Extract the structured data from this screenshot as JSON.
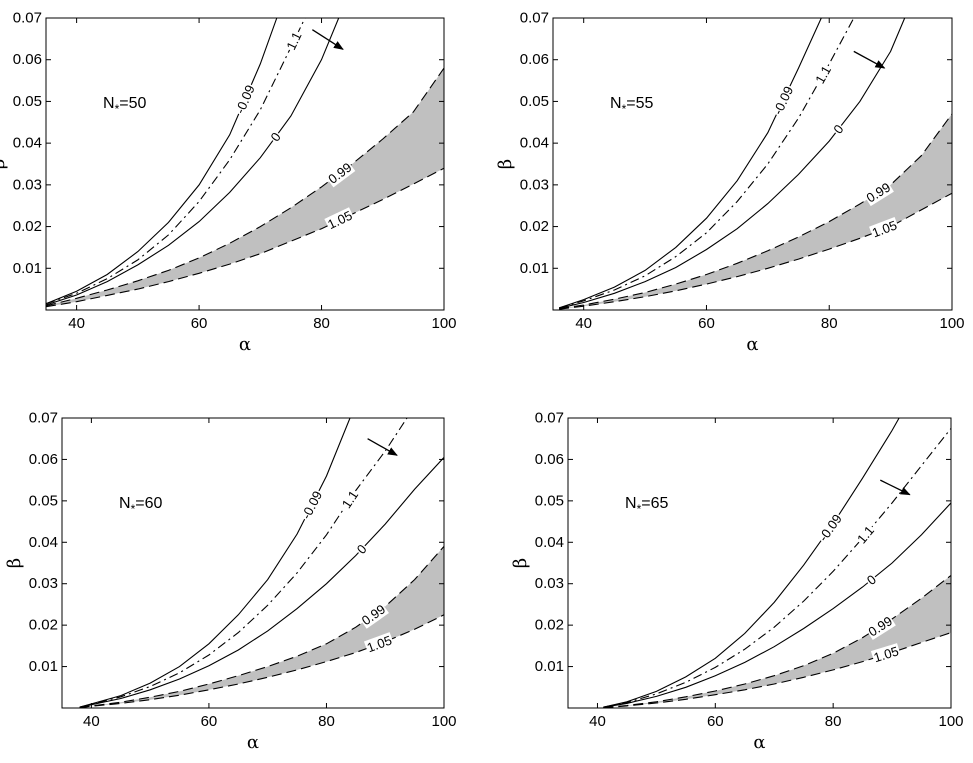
{
  "chart_data": [
    {
      "type": "line",
      "panel_label": "N",
      "panel_sub": "*",
      "panel_value": "=50",
      "xlabel": "α",
      "ylabel": "β",
      "xlim": [
        35,
        100
      ],
      "ylim": [
        0,
        0.07
      ],
      "xticks": [
        40,
        60,
        80,
        100
      ],
      "yticks": [
        0.01,
        0.02,
        0.03,
        0.04,
        0.05,
        0.06,
        0.07
      ],
      "arrow": {
        "from": [
          78.5,
          0.0672
        ],
        "to": [
          83.5,
          0.0625
        ]
      },
      "curves": [
        {
          "name": "-0.09",
          "style": "solid",
          "label": "-0.09",
          "label_x": 67.5,
          "x": [
            35,
            40,
            45,
            50,
            55,
            60,
            65,
            70,
            72.7
          ],
          "y": [
            0.0015,
            0.0045,
            0.0085,
            0.014,
            0.021,
            0.03,
            0.042,
            0.059,
            0.07
          ]
        },
        {
          "name": "1.1",
          "style": "dashdot",
          "label": "1.1",
          "label_x": 75.5,
          "x": [
            35,
            40,
            45,
            50,
            55,
            60,
            65,
            70,
            75,
            77.3
          ],
          "y": [
            0.0015,
            0.004,
            0.0075,
            0.012,
            0.018,
            0.026,
            0.036,
            0.048,
            0.063,
            0.07
          ]
        },
        {
          "name": "0",
          "style": "solid",
          "label": "0",
          "label_x": 72.5,
          "x": [
            35,
            40,
            45,
            50,
            55,
            60,
            65,
            70,
            75,
            80,
            82.8
          ],
          "y": [
            0.0012,
            0.0036,
            0.0068,
            0.0108,
            0.0155,
            0.0212,
            0.0282,
            0.0365,
            0.0465,
            0.06,
            0.07
          ]
        },
        {
          "name": "0.99",
          "style": "dashed",
          "label": "0.99",
          "label_x": 83,
          "x": [
            35,
            40,
            45,
            50,
            55,
            60,
            65,
            70,
            75,
            80,
            85,
            90,
            95,
            100
          ],
          "y": [
            0.001,
            0.0028,
            0.0048,
            0.007,
            0.0095,
            0.0125,
            0.016,
            0.02,
            0.0245,
            0.0295,
            0.035,
            0.041,
            0.0475,
            0.058
          ]
        },
        {
          "name": "1.05",
          "style": "dashed",
          "label": "1.05",
          "label_x": 83,
          "x": [
            35,
            40,
            45,
            50,
            55,
            60,
            65,
            70,
            75,
            80,
            85,
            90,
            95,
            100
          ],
          "y": [
            0.0008,
            0.002,
            0.0035,
            0.005,
            0.0068,
            0.0088,
            0.011,
            0.0135,
            0.0165,
            0.0195,
            0.023,
            0.0265,
            0.0302,
            0.034
          ]
        }
      ],
      "shade_between": [
        "0.99",
        "1.05"
      ]
    },
    {
      "type": "line",
      "panel_label": "N",
      "panel_sub": "*",
      "panel_value": "=55",
      "xlabel": "α",
      "ylabel": "β",
      "xlim": [
        35,
        100
      ],
      "ylim": [
        0,
        0.07
      ],
      "xticks": [
        40,
        60,
        80,
        100
      ],
      "yticks": [
        0.01,
        0.02,
        0.03,
        0.04,
        0.05,
        0.06,
        0.07
      ],
      "arrow": {
        "from": [
          84,
          0.062
        ],
        "to": [
          89,
          0.058
        ]
      },
      "curves": [
        {
          "name": "-0.09",
          "style": "solid",
          "label": "-0.09",
          "label_x": 72.5,
          "x": [
            36,
            40,
            45,
            50,
            55,
            60,
            65,
            70,
            75,
            78.7
          ],
          "y": [
            0.0005,
            0.0025,
            0.0055,
            0.0095,
            0.015,
            0.022,
            0.031,
            0.0425,
            0.058,
            0.07
          ]
        },
        {
          "name": "1.1",
          "style": "dashdot",
          "label": "1.1",
          "label_x": 79,
          "x": [
            36,
            40,
            45,
            50,
            55,
            60,
            65,
            70,
            75,
            80,
            84
          ],
          "y": [
            0.0005,
            0.0022,
            0.0048,
            0.0082,
            0.0128,
            0.0185,
            0.026,
            0.035,
            0.046,
            0.059,
            0.07
          ]
        },
        {
          "name": "0",
          "style": "solid",
          "label": "0",
          "label_x": 81.5,
          "x": [
            36,
            40,
            45,
            50,
            55,
            60,
            65,
            70,
            75,
            80,
            85,
            90,
            92.3
          ],
          "y": [
            0.0004,
            0.0018,
            0.004,
            0.0068,
            0.0102,
            0.0145,
            0.0195,
            0.0255,
            0.0325,
            0.0405,
            0.05,
            0.062,
            0.07
          ]
        },
        {
          "name": "0.99",
          "style": "dashed",
          "label": "0.99",
          "label_x": 88,
          "x": [
            36,
            40,
            45,
            50,
            55,
            60,
            65,
            70,
            75,
            80,
            85,
            90,
            95,
            100
          ],
          "y": [
            0.0003,
            0.0012,
            0.0026,
            0.0042,
            0.0062,
            0.0085,
            0.0112,
            0.0142,
            0.0175,
            0.0212,
            0.0254,
            0.03,
            0.037,
            0.047
          ]
        },
        {
          "name": "1.05",
          "style": "dashed",
          "label": "1.05",
          "label_x": 89,
          "x": [
            36,
            40,
            45,
            50,
            55,
            60,
            65,
            70,
            75,
            80,
            85,
            90,
            95,
            100
          ],
          "y": [
            0.0002,
            0.0009,
            0.002,
            0.0032,
            0.0046,
            0.0062,
            0.008,
            0.01,
            0.0122,
            0.0146,
            0.0172,
            0.02,
            0.024,
            0.028
          ]
        }
      ],
      "shade_between": [
        "0.99",
        "1.05"
      ]
    },
    {
      "type": "line",
      "panel_label": "N",
      "panel_sub": "*",
      "panel_value": "=60",
      "xlabel": "α",
      "ylabel": "β",
      "xlim": [
        35,
        100
      ],
      "ylim": [
        0,
        0.07
      ],
      "xticks": [
        40,
        60,
        80,
        100
      ],
      "yticks": [
        0.01,
        0.02,
        0.03,
        0.04,
        0.05,
        0.06,
        0.07
      ],
      "arrow": {
        "from": [
          87,
          0.065
        ],
        "to": [
          92,
          0.061
        ]
      },
      "curves": [
        {
          "name": "-0.09",
          "style": "solid",
          "label": "-0.09",
          "label_x": 77.5,
          "x": [
            38,
            40,
            45,
            50,
            55,
            60,
            65,
            70,
            75,
            80,
            84
          ],
          "y": [
            0.0002,
            0.001,
            0.003,
            0.006,
            0.01,
            0.0155,
            0.0225,
            0.031,
            0.042,
            0.056,
            0.07
          ]
        },
        {
          "name": "1.1",
          "style": "dashdot",
          "label": "1.1",
          "label_x": 84,
          "x": [
            38,
            40,
            45,
            50,
            55,
            60,
            65,
            70,
            75,
            80,
            85,
            90,
            93.7
          ],
          "y": [
            0.0002,
            0.0009,
            0.0027,
            0.0052,
            0.0085,
            0.0128,
            0.0182,
            0.0248,
            0.0326,
            0.0418,
            0.0525,
            0.062,
            0.07
          ]
        },
        {
          "name": "0",
          "style": "solid",
          "label": "0",
          "label_x": 86,
          "x": [
            38,
            40,
            45,
            50,
            55,
            60,
            65,
            70,
            75,
            80,
            85,
            90,
            95,
            100
          ],
          "y": [
            0.0002,
            0.0008,
            0.0023,
            0.0044,
            0.007,
            0.0102,
            0.014,
            0.0186,
            0.024,
            0.03,
            0.0368,
            0.0444,
            0.0528,
            0.0605
          ]
        },
        {
          "name": "0.99",
          "style": "dashed",
          "label": "0.99",
          "label_x": 88,
          "x": [
            38,
            40,
            45,
            50,
            55,
            60,
            65,
            70,
            75,
            80,
            85,
            90,
            95,
            100
          ],
          "y": [
            0.0001,
            0.0005,
            0.0014,
            0.0026,
            0.004,
            0.0058,
            0.0078,
            0.01,
            0.0125,
            0.0155,
            0.0195,
            0.0245,
            0.031,
            0.039
          ]
        },
        {
          "name": "1.05",
          "style": "dashed",
          "label": "1.05",
          "label_x": 89,
          "x": [
            38,
            40,
            45,
            50,
            55,
            60,
            65,
            70,
            75,
            80,
            85,
            90,
            95,
            100
          ],
          "y": [
            0.0001,
            0.0004,
            0.0011,
            0.002,
            0.0031,
            0.0044,
            0.0058,
            0.0074,
            0.0092,
            0.0112,
            0.0134,
            0.016,
            0.019,
            0.0225
          ]
        }
      ],
      "shade_between": [
        "0.99",
        "1.05"
      ]
    },
    {
      "type": "line",
      "panel_label": "N",
      "panel_sub": "*",
      "panel_value": "=65",
      "xlabel": "α",
      "ylabel": "β",
      "xlim": [
        35,
        100
      ],
      "ylim": [
        0,
        0.07
      ],
      "xticks": [
        40,
        60,
        80,
        100
      ],
      "yticks": [
        0.01,
        0.02,
        0.03,
        0.04,
        0.05,
        0.06,
        0.07
      ],
      "arrow": {
        "from": [
          88,
          0.055
        ],
        "to": [
          93,
          0.0515
        ]
      },
      "curves": [
        {
          "name": "-0.09",
          "style": "solid",
          "label": "-0.09",
          "label_x": 79.5,
          "x": [
            41,
            45,
            50,
            55,
            60,
            65,
            70,
            75,
            80,
            85,
            90,
            91.2
          ],
          "y": [
            0.0002,
            0.0015,
            0.004,
            0.0075,
            0.012,
            0.018,
            0.0255,
            0.0345,
            0.0445,
            0.0555,
            0.067,
            0.07
          ]
        },
        {
          "name": "1.1",
          "style": "dashdot",
          "label": "1.1",
          "label_x": 85.5,
          "x": [
            41,
            45,
            50,
            55,
            60,
            65,
            70,
            75,
            80,
            85,
            90,
            95,
            100
          ],
          "y": [
            0.0002,
            0.0013,
            0.0034,
            0.0062,
            0.0098,
            0.0142,
            0.0195,
            0.0258,
            0.033,
            0.041,
            0.0495,
            0.0585,
            0.0675
          ]
        },
        {
          "name": "0",
          "style": "solid",
          "label": "0",
          "label_x": 86.5,
          "x": [
            41,
            45,
            50,
            55,
            60,
            65,
            70,
            75,
            80,
            85,
            90,
            95,
            100
          ],
          "y": [
            0.0002,
            0.0011,
            0.0028,
            0.005,
            0.0078,
            0.011,
            0.0148,
            0.0192,
            0.024,
            0.0292,
            0.035,
            0.0418,
            0.0495
          ]
        },
        {
          "name": "0.99",
          "style": "dashed",
          "label": "0.99",
          "label_x": 88,
          "x": [
            41,
            45,
            50,
            55,
            60,
            65,
            70,
            75,
            80,
            85,
            90,
            95,
            100
          ],
          "y": [
            0.0001,
            0.0006,
            0.0015,
            0.0027,
            0.0041,
            0.0058,
            0.0078,
            0.0102,
            0.0132,
            0.017,
            0.0215,
            0.0265,
            0.032
          ]
        },
        {
          "name": "1.05",
          "style": "dashed",
          "label": "1.05",
          "label_x": 89,
          "x": [
            41,
            45,
            50,
            55,
            60,
            65,
            70,
            75,
            80,
            85,
            90,
            95,
            100
          ],
          "y": [
            0.0001,
            0.0005,
            0.0012,
            0.0021,
            0.0032,
            0.0044,
            0.0058,
            0.0074,
            0.0092,
            0.0112,
            0.0134,
            0.0158,
            0.0182
          ]
        }
      ],
      "shade_between": [
        "0.99",
        "1.05"
      ]
    }
  ]
}
